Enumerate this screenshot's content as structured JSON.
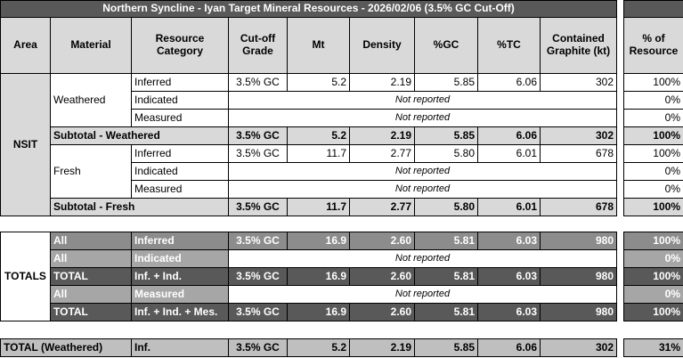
{
  "title": "Northern Syncline - Iyan Target Mineral Resources - 2026/02/06 (3.5% GC Cut-Off)",
  "header": [
    "Area",
    "Material",
    "Resource Category",
    "Cut-off Grade",
    "Mt",
    "Density",
    "%GC",
    "%TC",
    "Contained Graphite (kt)",
    "% of Resource"
  ],
  "nsit": {
    "area": "NSIT",
    "weathered": {
      "material": "Weathered",
      "rows": [
        [
          "Inferred",
          "3.5% GC",
          "5.2",
          "2.19",
          "5.85",
          "6.06",
          "302",
          "100%"
        ],
        [
          "Indicated",
          "Not reported",
          "0%"
        ],
        [
          "Measured",
          "Not reported",
          "0%"
        ]
      ]
    },
    "subtotal_weathered": [
      "Subtotal - Weathered",
      "3.5% GC",
      "5.2",
      "2.19",
      "5.85",
      "6.06",
      "302",
      "100%"
    ],
    "fresh": {
      "material": "Fresh",
      "rows": [
        [
          "Inferred",
          "3.5% GC",
          "11.7",
          "2.77",
          "5.80",
          "6.01",
          "678",
          "100%"
        ],
        [
          "Indicated",
          "Not reported",
          "0%"
        ],
        [
          "Measured",
          "Not reported",
          "0%"
        ]
      ]
    },
    "subtotal_fresh": [
      "Subtotal - Fresh",
      "3.5% GC",
      "11.7",
      "2.77",
      "5.80",
      "6.01",
      "678",
      "100%"
    ]
  },
  "totals": {
    "label": "TOTALS",
    "rows": [
      [
        "All",
        "Inferred",
        "3.5% GC",
        "16.9",
        "2.60",
        "5.81",
        "6.03",
        "980",
        "100%"
      ],
      [
        "All",
        "Indicated",
        "Not reported",
        "0%"
      ],
      [
        "TOTAL",
        "Inf. + Ind.",
        "3.5% GC",
        "16.9",
        "2.60",
        "5.81",
        "6.03",
        "980",
        "100%"
      ],
      [
        "All",
        "Measured",
        "Not reported",
        "0%"
      ],
      [
        "TOTAL",
        "Inf. + Ind. + Mes.",
        "3.5% GC",
        "16.9",
        "2.60",
        "5.81",
        "6.03",
        "980",
        "100%"
      ]
    ]
  },
  "total_weathered": [
    "TOTAL (Weathered)",
    "Inf.",
    "3.5% GC",
    "5.2",
    "2.19",
    "5.85",
    "6.06",
    "302",
    "31%"
  ]
}
